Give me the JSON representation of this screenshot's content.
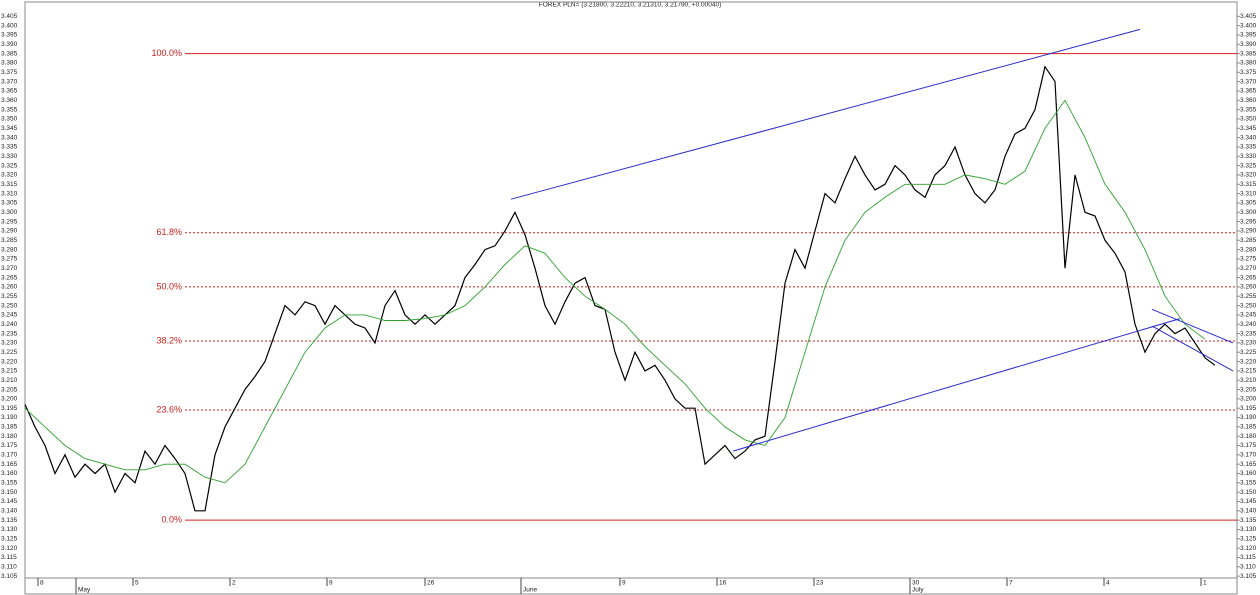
{
  "chart_data": {
    "type": "line",
    "title": "FOREX PLN= (3.21800, 3.22210, 3.21310, 3.21790, +0.00040)",
    "xlim": [
      0,
      121.2
    ],
    "ylim": [
      3.104,
      3.41
    ],
    "yticks": [
      3.105,
      {
        "value": 3.11,
        "label": "3.110"
      },
      3.115,
      {
        "value": 3.12,
        "label": "3.120"
      },
      3.125,
      {
        "value": 3.13,
        "label": "3.130"
      },
      3.135,
      {
        "value": 3.14,
        "label": "3.140"
      },
      3.145,
      {
        "value": 3.15,
        "label": "3.150"
      },
      3.155,
      {
        "value": 3.16,
        "label": "3.160"
      },
      3.165,
      {
        "value": 3.17,
        "label": "3.170"
      },
      3.175,
      {
        "value": 3.18,
        "label": "3.180"
      },
      3.185,
      {
        "value": 3.19,
        "label": "3.190"
      },
      3.195,
      {
        "value": 3.2,
        "label": "3.200"
      },
      3.205,
      {
        "value": 3.21,
        "label": "3.210"
      },
      3.215,
      {
        "value": 3.22,
        "label": "3.220"
      },
      3.225,
      {
        "value": 3.23,
        "label": "3.230"
      },
      3.235,
      {
        "value": 3.24,
        "label": "3.240"
      },
      3.245,
      {
        "value": 3.25,
        "label": "3.250"
      },
      3.255,
      {
        "value": 3.26,
        "label": "3.260"
      },
      3.265,
      {
        "value": 3.27,
        "label": "3.270"
      },
      3.275,
      {
        "value": 3.28,
        "label": "3.280"
      },
      3.285,
      {
        "value": 3.29,
        "label": "3.290"
      },
      3.295,
      {
        "value": 3.3,
        "label": "3.300"
      },
      3.305,
      {
        "value": 3.31,
        "label": "3.310"
      },
      3.315,
      {
        "value": 3.32,
        "label": "3.320"
      },
      3.325,
      {
        "value": 3.33,
        "label": "3.330"
      },
      3.335,
      {
        "value": 3.34,
        "label": "3.340"
      },
      3.345,
      {
        "value": 3.35,
        "label": "3.350"
      },
      3.355,
      {
        "value": 3.36,
        "label": "3.360"
      },
      3.365,
      {
        "value": 3.37,
        "label": "3.370"
      },
      3.375,
      {
        "value": 3.38,
        "label": "3.380"
      },
      3.385,
      {
        "value": 3.39,
        "label": "3.390"
      },
      3.395,
      {
        "value": 3.4,
        "label": "3.400"
      },
      3.405
    ],
    "xticks": [
      {
        "value": 1.3,
        "label": "8"
      },
      {
        "value": 10.8,
        "label": "5"
      },
      {
        "value": 20.5,
        "label": "2"
      },
      {
        "value": 30.2,
        "label": "9"
      },
      {
        "value": 40,
        "label": "26"
      },
      {
        "value": 59.5,
        "label": "9"
      },
      {
        "value": 69.2,
        "label": "16"
      },
      {
        "value": 78.9,
        "label": "23"
      },
      {
        "value": 88.5,
        "label": "30"
      },
      {
        "value": 98.2,
        "label": "7"
      },
      {
        "value": 107.9,
        "label": "4"
      },
      {
        "value": 117.6,
        "label": "1"
      }
    ],
    "month_ticks": [
      {
        "value": 5.1,
        "label": "May"
      },
      {
        "value": 49.6,
        "label": "June"
      },
      {
        "value": 88.5,
        "label": "July"
      }
    ],
    "series": [
      {
        "color": "#000000",
        "x": [
          0,
          1,
          2,
          3,
          4,
          5,
          6,
          7,
          8,
          9,
          10,
          11,
          12,
          13,
          14,
          15,
          16,
          17,
          18,
          19,
          20,
          21,
          22,
          23,
          24,
          25,
          26,
          27,
          28,
          29,
          30,
          31,
          32,
          33,
          34,
          35,
          36,
          37,
          38,
          39,
          40,
          41,
          42,
          43,
          44,
          45,
          46,
          47,
          48,
          49,
          50,
          51,
          52,
          53,
          54,
          55,
          56,
          57,
          58,
          59,
          60,
          61,
          62,
          63,
          64,
          65,
          66,
          67,
          68,
          69,
          70,
          71,
          72,
          73,
          74,
          75,
          76,
          77,
          78,
          79,
          80,
          81,
          82,
          83,
          84,
          85,
          86,
          87,
          88,
          89,
          90,
          91,
          92,
          93,
          94,
          95,
          96,
          97,
          98,
          99,
          100,
          101,
          102,
          103,
          104,
          105,
          106,
          107,
          108,
          109,
          110,
          111,
          112,
          113,
          114,
          115,
          116,
          117,
          118,
          119
        ],
        "values": [
          3.197,
          3.185,
          3.175,
          3.16,
          3.17,
          3.158,
          3.165,
          3.16,
          3.165,
          3.15,
          3.16,
          3.155,
          3.172,
          3.165,
          3.175,
          3.168,
          3.16,
          3.14,
          3.14,
          3.17,
          3.185,
          3.195,
          3.205,
          3.212,
          3.22,
          3.235,
          3.25,
          3.245,
          3.252,
          3.25,
          3.24,
          3.25,
          3.245,
          3.24,
          3.238,
          3.23,
          3.25,
          3.258,
          3.245,
          3.24,
          3.245,
          3.24,
          3.245,
          3.25,
          3.265,
          3.272,
          3.28,
          3.282,
          3.29,
          3.3,
          3.288,
          3.27,
          3.25,
          3.24,
          3.252,
          3.262,
          3.265,
          3.25,
          3.248,
          3.225,
          3.21,
          3.225,
          3.215,
          3.218,
          3.21,
          3.2,
          3.195,
          3.195,
          3.165,
          3.17,
          3.175,
          3.168,
          3.172,
          3.178,
          3.18,
          3.22,
          3.262,
          3.28,
          3.27,
          3.29,
          3.31,
          3.305,
          3.318,
          3.33,
          3.32,
          3.312,
          3.315,
          3.325,
          3.32,
          3.312,
          3.308,
          3.32,
          3.325,
          3.335,
          3.32,
          3.31,
          3.305,
          3.312,
          3.33,
          3.342,
          3.345,
          3.355,
          3.378,
          3.37,
          3.27,
          3.32,
          3.3,
          3.298,
          3.285,
          3.278,
          3.268,
          3.24,
          3.225,
          3.235,
          3.24,
          3.235,
          3.238,
          3.23,
          3.222,
          3.218
        ]
      },
      {
        "color": "#2ca02c",
        "x": [
          0,
          2,
          4,
          6,
          8,
          10,
          12,
          14,
          16,
          18,
          20,
          22,
          24,
          26,
          28,
          30,
          32,
          34,
          36,
          38,
          40,
          42,
          44,
          46,
          48,
          50,
          52,
          54,
          56,
          58,
          60,
          62,
          64,
          66,
          68,
          70,
          72,
          74,
          76,
          78,
          80,
          82,
          84,
          86,
          88,
          90,
          92,
          94,
          96,
          98,
          100,
          102,
          104,
          106,
          108,
          110,
          112,
          114,
          116,
          118
        ],
        "values": [
          3.195,
          3.185,
          3.175,
          3.168,
          3.165,
          3.162,
          3.162,
          3.165,
          3.165,
          3.158,
          3.155,
          3.165,
          3.185,
          3.205,
          3.225,
          3.238,
          3.245,
          3.245,
          3.242,
          3.242,
          3.243,
          3.245,
          3.25,
          3.26,
          3.272,
          3.282,
          3.278,
          3.265,
          3.255,
          3.248,
          3.24,
          3.228,
          3.218,
          3.208,
          3.195,
          3.185,
          3.178,
          3.175,
          3.19,
          3.225,
          3.26,
          3.285,
          3.3,
          3.308,
          3.315,
          3.315,
          3.315,
          3.32,
          3.318,
          3.315,
          3.322,
          3.345,
          3.36,
          3.34,
          3.315,
          3.3,
          3.28,
          3.255,
          3.24,
          3.232
        ]
      }
    ],
    "trend_lines": [
      {
        "color": "#2a2ad0",
        "x": [
          48.6,
          111.5
        ],
        "values": [
          3.307,
          3.398
        ]
      },
      {
        "color": "#2a2ad0",
        "x": [
          70.8,
          115.5
        ],
        "values": [
          3.172,
          3.243
        ]
      },
      {
        "color": "#2a2ad0",
        "x": [
          112.7,
          120.8
        ],
        "values": [
          3.248,
          3.23
        ]
      },
      {
        "color": "#2a2ad0",
        "x": [
          112.7,
          120.8
        ],
        "values": [
          3.239,
          3.215
        ]
      }
    ],
    "levels": [
      {
        "label": "100.0%",
        "value": 3.385,
        "solid": true
      },
      {
        "label": "61.8%",
        "value": 3.289,
        "solid": false
      },
      {
        "label": "50.0%",
        "value": 3.26,
        "solid": false
      },
      {
        "label": "38.2%",
        "value": 3.231,
        "solid": false
      },
      {
        "label": "23.6%",
        "value": 3.194,
        "solid": false
      },
      {
        "label": "0.0%",
        "value": 3.135,
        "solid": true
      }
    ],
    "level_color": "#d02020"
  }
}
